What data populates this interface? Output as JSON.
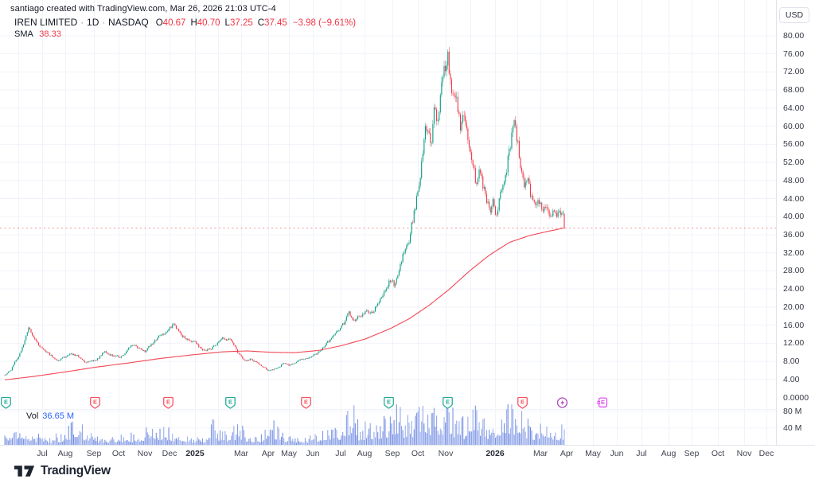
{
  "attribution": "santiago created with TradingView.com, Mar 26, 2026 21:03 UTC-4",
  "legend": {
    "title": "IREN LIMITED",
    "dot": "·",
    "interval": "1D",
    "exchange": "NASDAQ",
    "o_label": "O",
    "o_value": "40.67",
    "h_label": "H",
    "h_value": "40.70",
    "l_label": "L",
    "l_value": "37.25",
    "c_label": "C",
    "c_value": "37.45",
    "change": "−3.98 (−9.61%)",
    "sma_label": "SMA",
    "sma_value": "38.33"
  },
  "price_axis": {
    "currency": "USD",
    "ticks": [
      "80.00",
      "76.00",
      "72.00",
      "68.00",
      "64.00",
      "60.00",
      "56.00",
      "52.00",
      "48.00",
      "44.00",
      "40.00",
      "36.00",
      "32.00",
      "28.00",
      "24.00",
      "20.00",
      "16.00",
      "12.00",
      "8.00",
      "4.00"
    ],
    "zero_label": "0.0000"
  },
  "volume_axis": {
    "ticks": [
      "80 M",
      "40 M"
    ]
  },
  "volume_legend": {
    "label": "Vol",
    "value": "36.65 M"
  },
  "time_axis": {
    "labels": [
      {
        "t": "Jul",
        "x": 53
      },
      {
        "t": "Aug",
        "x": 82
      },
      {
        "t": "Sep",
        "x": 118
      },
      {
        "t": "Oct",
        "x": 149
      },
      {
        "t": "Nov",
        "x": 182
      },
      {
        "t": "Dec",
        "x": 213
      },
      {
        "t": "2025",
        "x": 245,
        "b": true
      },
      {
        "t": "Mar",
        "x": 303
      },
      {
        "t": "Apr",
        "x": 337
      },
      {
        "t": "May",
        "x": 363
      },
      {
        "t": "Jun",
        "x": 393
      },
      {
        "t": "Jul",
        "x": 428
      },
      {
        "t": "Aug",
        "x": 458
      },
      {
        "t": "Sep",
        "x": 493
      },
      {
        "t": "Oct",
        "x": 525
      },
      {
        "t": "Nov",
        "x": 560
      },
      {
        "t": "2026",
        "x": 622,
        "b": true
      },
      {
        "t": "Mar",
        "x": 679
      },
      {
        "t": "Apr",
        "x": 712
      },
      {
        "t": "May",
        "x": 745
      },
      {
        "t": "Jun",
        "x": 775
      },
      {
        "t": "Jul",
        "x": 806
      },
      {
        "t": "Aug",
        "x": 840
      },
      {
        "t": "Sep",
        "x": 869
      },
      {
        "t": "Oct",
        "x": 902
      },
      {
        "t": "Nov",
        "x": 935
      },
      {
        "t": "Dec",
        "x": 963
      }
    ]
  },
  "markers": [
    {
      "x": 7,
      "kind": "earnings",
      "tone": "up",
      "letter": "E"
    },
    {
      "x": 119,
      "kind": "earnings",
      "tone": "down",
      "letter": "E"
    },
    {
      "x": 211,
      "kind": "earnings",
      "tone": "down",
      "letter": "E"
    },
    {
      "x": 289,
      "kind": "earnings",
      "tone": "up",
      "letter": "E"
    },
    {
      "x": 384,
      "kind": "earnings",
      "tone": "down",
      "letter": "E"
    },
    {
      "x": 488,
      "kind": "earnings",
      "tone": "up",
      "letter": "E"
    },
    {
      "x": 562,
      "kind": "earnings",
      "tone": "up",
      "letter": "E"
    },
    {
      "x": 656,
      "kind": "earnings",
      "tone": "down",
      "letter": "E"
    },
    {
      "x": 706,
      "kind": "split",
      "tone": "split",
      "letter": ""
    },
    {
      "x": 757,
      "kind": "earnings-upcoming",
      "tone": "upcoming",
      "letter": "E"
    }
  ],
  "footer": {
    "brand": "TradingView"
  },
  "colors": {
    "up": "#089981",
    "down": "#f23645",
    "sma": "#f23645",
    "volume_rgb": "76,110,219",
    "grid": "#f0f3fa",
    "separator": "#e0e3eb",
    "dashed": "#f23645",
    "badge_up": "#22ab94",
    "badge_down": "#f7525f",
    "badge_split": "#ab47bc",
    "badge_upcoming": "#e04ff5",
    "accent_blue": "#2962ff"
  },
  "chart_data": {
    "type": "candlestick",
    "title": "IREN LIMITED · 1D · NASDAQ",
    "currency": "USD",
    "ohlc_last": {
      "open": 40.67,
      "high": 40.7,
      "low": 37.25,
      "close": 37.45
    },
    "change": -3.98,
    "change_pct": -9.61,
    "sma_last": 38.33,
    "volume_last_m": 36.65,
    "ylim": [
      0,
      82
    ],
    "price_ticks": [
      80,
      76,
      72,
      68,
      64,
      60,
      56,
      52,
      48,
      44,
      40,
      36,
      32,
      28,
      24,
      20,
      16,
      12,
      8,
      4
    ],
    "volume_ticks_m": [
      80,
      40
    ],
    "last_close_line": 37.45,
    "grid_on": true,
    "bars": {
      "count": 448,
      "x_start": 6,
      "x_end": 709,
      "seed": 11
    },
    "grid_extra_x": [
      23,
      274,
      591,
      650
    ],
    "close_path": [
      [
        6,
        4.9
      ],
      [
        14,
        6.2
      ],
      [
        22,
        8.8
      ],
      [
        30,
        12.0
      ],
      [
        36,
        15.0
      ],
      [
        40,
        13.8
      ],
      [
        46,
        12.2
      ],
      [
        52,
        11.0
      ],
      [
        58,
        10.4
      ],
      [
        66,
        9.0
      ],
      [
        72,
        8.3
      ],
      [
        80,
        8.8
      ],
      [
        90,
        9.6
      ],
      [
        100,
        8.9
      ],
      [
        108,
        7.7
      ],
      [
        116,
        8.1
      ],
      [
        124,
        8.8
      ],
      [
        132,
        10.2
      ],
      [
        140,
        9.4
      ],
      [
        150,
        9.0
      ],
      [
        158,
        10.1
      ],
      [
        166,
        11.4
      ],
      [
        174,
        11.0
      ],
      [
        182,
        10.3
      ],
      [
        190,
        11.6
      ],
      [
        198,
        12.9
      ],
      [
        206,
        14.2
      ],
      [
        214,
        15.6
      ],
      [
        219,
        16.2
      ],
      [
        226,
        14.0
      ],
      [
        234,
        13.2
      ],
      [
        242,
        12.7
      ],
      [
        250,
        11.4
      ],
      [
        258,
        10.3
      ],
      [
        266,
        10.9
      ],
      [
        274,
        12.2
      ],
      [
        282,
        13.0
      ],
      [
        292,
        12.4
      ],
      [
        300,
        9.6
      ],
      [
        308,
        8.2
      ],
      [
        316,
        8.7
      ],
      [
        324,
        7.4
      ],
      [
        332,
        6.5
      ],
      [
        340,
        5.9
      ],
      [
        348,
        6.6
      ],
      [
        356,
        7.4
      ],
      [
        364,
        7.0
      ],
      [
        372,
        7.8
      ],
      [
        380,
        8.4
      ],
      [
        390,
        9.0
      ],
      [
        398,
        9.8
      ],
      [
        406,
        11.2
      ],
      [
        414,
        12.4
      ],
      [
        422,
        13.9
      ],
      [
        428,
        15.3
      ],
      [
        434,
        16.8
      ],
      [
        438,
        18.8
      ],
      [
        443,
        17.2
      ],
      [
        450,
        17.6
      ],
      [
        458,
        19.2
      ],
      [
        466,
        18.5
      ],
      [
        472,
        19.8
      ],
      [
        478,
        21.5
      ],
      [
        484,
        23.8
      ],
      [
        490,
        26.0
      ],
      [
        496,
        24.8
      ],
      [
        502,
        29.5
      ],
      [
        508,
        32.5
      ],
      [
        514,
        35.0
      ],
      [
        519,
        39.5
      ],
      [
        524,
        44.5
      ],
      [
        529,
        50.5
      ],
      [
        534,
        57.5
      ],
      [
        538,
        61.0
      ],
      [
        542,
        57.0
      ],
      [
        546,
        64.0
      ],
      [
        550,
        60.5
      ],
      [
        554,
        66.5
      ],
      [
        558,
        70.5
      ],
      [
        563,
        74.5
      ],
      [
        567,
        66.5
      ],
      [
        571,
        69.0
      ],
      [
        575,
        63.5
      ],
      [
        579,
        59.0
      ],
      [
        583,
        62.0
      ],
      [
        588,
        56.5
      ],
      [
        593,
        51.5
      ],
      [
        598,
        47.5
      ],
      [
        603,
        50.0
      ],
      [
        607,
        47.0
      ],
      [
        612,
        43.5
      ],
      [
        616,
        42.0
      ],
      [
        620,
        44.0
      ],
      [
        624,
        39.8
      ],
      [
        628,
        43.5
      ],
      [
        632,
        47.5
      ],
      [
        636,
        51.0
      ],
      [
        640,
        55.0
      ],
      [
        644,
        59.0
      ],
      [
        647,
        60.0
      ],
      [
        651,
        55.5
      ],
      [
        655,
        50.5
      ],
      [
        659,
        46.0
      ],
      [
        663,
        47.5
      ],
      [
        667,
        44.5
      ],
      [
        671,
        42.5
      ],
      [
        675,
        44.5
      ],
      [
        679,
        43.5
      ],
      [
        683,
        41.5
      ],
      [
        687,
        43.0
      ],
      [
        691,
        40.5
      ],
      [
        695,
        41.5
      ],
      [
        699,
        40.5
      ],
      [
        703,
        41.3
      ],
      [
        707,
        41.5
      ],
      [
        709,
        37.45
      ]
    ],
    "sma_path": [
      [
        6,
        3.9
      ],
      [
        40,
        4.6
      ],
      [
        80,
        5.6
      ],
      [
        120,
        6.7
      ],
      [
        160,
        7.6
      ],
      [
        200,
        8.6
      ],
      [
        240,
        9.4
      ],
      [
        280,
        10.1
      ],
      [
        310,
        10.3
      ],
      [
        340,
        10.0
      ],
      [
        370,
        9.9
      ],
      [
        400,
        10.4
      ],
      [
        430,
        11.5
      ],
      [
        460,
        13.0
      ],
      [
        490,
        15.2
      ],
      [
        515,
        17.5
      ],
      [
        540,
        20.5
      ],
      [
        565,
        24.0
      ],
      [
        590,
        28.0
      ],
      [
        615,
        31.5
      ],
      [
        640,
        34.3
      ],
      [
        665,
        35.8
      ],
      [
        690,
        36.8
      ],
      [
        709,
        37.5
      ]
    ],
    "volume_path_m": [
      [
        6,
        16
      ],
      [
        20,
        20
      ],
      [
        40,
        15
      ],
      [
        60,
        12
      ],
      [
        80,
        18
      ],
      [
        98,
        42
      ],
      [
        106,
        22
      ],
      [
        120,
        15
      ],
      [
        140,
        13
      ],
      [
        160,
        15
      ],
      [
        180,
        20
      ],
      [
        188,
        48
      ],
      [
        196,
        22
      ],
      [
        210,
        30
      ],
      [
        224,
        16
      ],
      [
        240,
        13
      ],
      [
        258,
        14
      ],
      [
        267,
        45
      ],
      [
        276,
        20
      ],
      [
        290,
        22
      ],
      [
        302,
        26
      ],
      [
        316,
        12
      ],
      [
        330,
        16
      ],
      [
        344,
        34
      ],
      [
        356,
        14
      ],
      [
        370,
        11
      ],
      [
        384,
        12
      ],
      [
        398,
        16
      ],
      [
        410,
        22
      ],
      [
        422,
        26
      ],
      [
        432,
        30
      ],
      [
        438,
        46
      ],
      [
        444,
        56
      ],
      [
        452,
        28
      ],
      [
        462,
        30
      ],
      [
        472,
        34
      ],
      [
        482,
        40
      ],
      [
        492,
        48
      ],
      [
        501,
        62
      ],
      [
        508,
        40
      ],
      [
        515,
        46
      ],
      [
        522,
        50
      ],
      [
        529,
        55
      ],
      [
        536,
        50
      ],
      [
        543,
        46
      ],
      [
        550,
        52
      ],
      [
        557,
        60
      ],
      [
        564,
        58
      ],
      [
        571,
        48
      ],
      [
        578,
        42
      ],
      [
        585,
        40
      ],
      [
        592,
        72
      ],
      [
        599,
        46
      ],
      [
        606,
        38
      ],
      [
        613,
        34
      ],
      [
        620,
        32
      ],
      [
        627,
        38
      ],
      [
        634,
        44
      ],
      [
        641,
        60
      ],
      [
        648,
        45
      ],
      [
        655,
        52
      ],
      [
        662,
        36
      ],
      [
        669,
        30
      ],
      [
        676,
        28
      ],
      [
        683,
        34
      ],
      [
        690,
        28
      ],
      [
        697,
        26
      ],
      [
        703,
        26
      ],
      [
        709,
        37
      ]
    ]
  }
}
